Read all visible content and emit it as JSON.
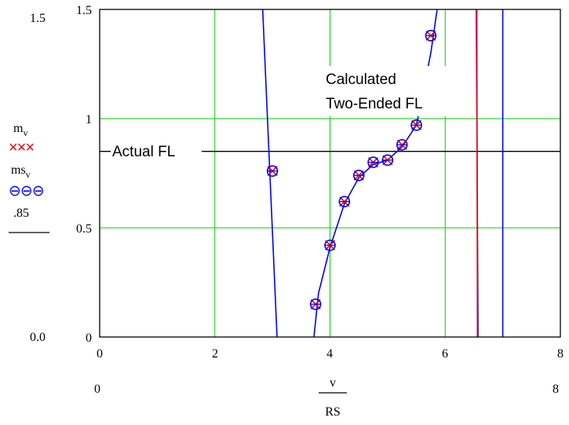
{
  "chart_data": {
    "type": "line",
    "title": "",
    "xlim": [
      0,
      8
    ],
    "ylim": [
      0,
      1.5
    ],
    "x_ticks": [
      "0",
      "2",
      "4",
      "6",
      "8"
    ],
    "y_ticks": [
      "0",
      "0.5",
      "1",
      "1.5"
    ],
    "grid": true,
    "x_range_labels": {
      "min": "0",
      "max": "8"
    },
    "y_range_labels": {
      "min": "0.0",
      "max": "1.5"
    },
    "xlabel": {
      "numerator": "v",
      "denominator": "RS"
    },
    "legend": [
      {
        "base": "m",
        "sub": "v",
        "symbol": "×××",
        "color": "#ff0000"
      },
      {
        "base": "ms",
        "sub": "v",
        "symbol": "⊖⊖⊖",
        "color": "#0000ff"
      },
      {
        "base": ".85",
        "sub": "",
        "symbol": "",
        "color": "#000000"
      }
    ],
    "series": [
      {
        "name": "m_v",
        "color": "#ff0000",
        "marker": "x",
        "points": [
          [
            3.0,
            0.76
          ],
          [
            3.75,
            0.15
          ],
          [
            4.0,
            0.42
          ],
          [
            4.25,
            0.62
          ],
          [
            4.5,
            0.74
          ],
          [
            4.75,
            0.8
          ],
          [
            5.0,
            0.81
          ],
          [
            5.25,
            0.88
          ],
          [
            5.5,
            0.97
          ],
          [
            5.75,
            1.38
          ]
        ]
      },
      {
        "name": "ms_v",
        "color": "#0000ff",
        "marker": "o",
        "points": [
          [
            3.0,
            0.76
          ],
          [
            3.75,
            0.15
          ],
          [
            4.0,
            0.42
          ],
          [
            4.25,
            0.62
          ],
          [
            4.5,
            0.74
          ],
          [
            4.75,
            0.8
          ],
          [
            5.0,
            0.81
          ],
          [
            5.25,
            0.88
          ],
          [
            5.5,
            0.97
          ],
          [
            5.75,
            1.38
          ]
        ]
      },
      {
        "name": "fitted_curve",
        "color": "#0000ff",
        "branches": [
          [
            [
              2.83,
              1.5
            ],
            [
              3.08,
              0
            ]
          ],
          [
            [
              3.72,
              0
            ],
            [
              3.8,
              0.2
            ],
            [
              4.0,
              0.41
            ],
            [
              4.25,
              0.61
            ],
            [
              4.5,
              0.73
            ],
            [
              4.75,
              0.79
            ],
            [
              5.0,
              0.81
            ],
            [
              5.25,
              0.87
            ],
            [
              5.5,
              0.97
            ],
            [
              5.75,
              1.3
            ],
            [
              5.86,
              1.5
            ]
          ],
          [
            [
              6.54,
              1.5
            ],
            [
              6.57,
              0
            ]
          ],
          [
            [
              7.0,
              1.5
            ],
            [
              7.0,
              0
            ]
          ]
        ]
      },
      {
        "name": "red_vertical",
        "color": "#ff0000",
        "branches": [
          [
            [
              6.55,
              1.5
            ],
            [
              6.56,
              0
            ]
          ]
        ]
      },
      {
        "name": ".85",
        "color": "#000000",
        "y": 0.85
      }
    ],
    "annotations": [
      {
        "text": "Actual FL"
      },
      {
        "text": "Calculated"
      },
      {
        "text": "Two-Ended FL"
      }
    ]
  }
}
